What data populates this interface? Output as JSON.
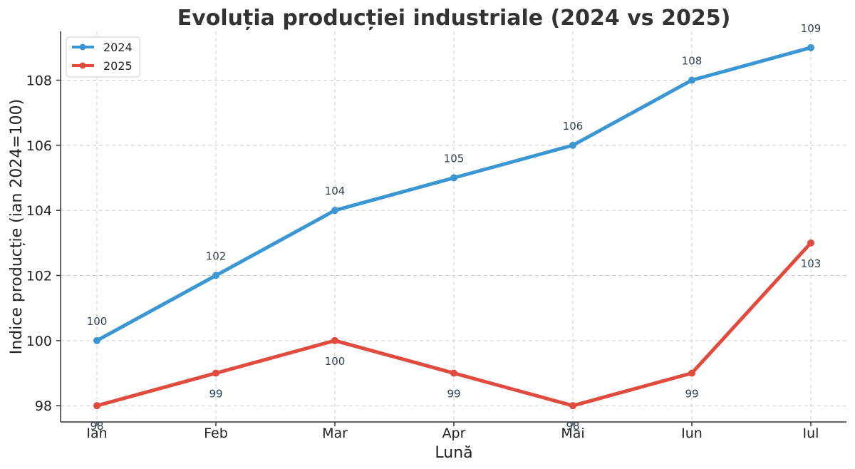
{
  "chart_data": {
    "type": "line",
    "title": "Evoluția producției industriale (2024 vs 2025)",
    "xlabel": "Lună",
    "ylabel": "Indice producție (ian 2024=100)",
    "categories": [
      "Ian",
      "Feb",
      "Mar",
      "Apr",
      "Mai",
      "Iun",
      "Iul"
    ],
    "ylim": [
      97.5,
      109.5
    ],
    "yticks": [
      98,
      100,
      102,
      104,
      106,
      108
    ],
    "grid": true,
    "legend_position": "top-left",
    "series": [
      {
        "name": "2024",
        "color": "#3b97d3",
        "values": [
          100,
          102,
          104,
          105,
          106,
          108,
          109
        ],
        "labels": [
          "100",
          "102",
          "104",
          "105",
          "106",
          "108",
          "109"
        ],
        "label_position": "above"
      },
      {
        "name": "2025",
        "color": "#e04b3d",
        "values": [
          98,
          99,
          100,
          99,
          98,
          99,
          103
        ],
        "labels": [
          "98",
          "99",
          "100",
          "99",
          "98",
          "99",
          "103"
        ],
        "label_position": "below"
      }
    ]
  }
}
